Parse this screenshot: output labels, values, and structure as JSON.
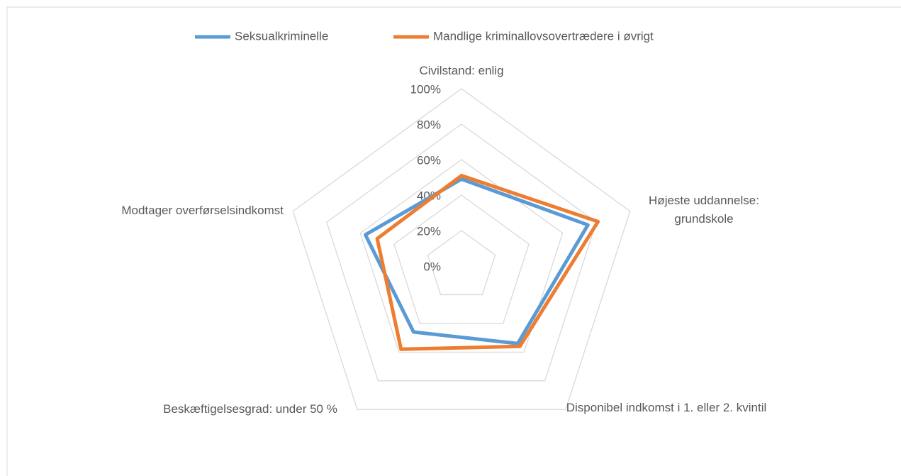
{
  "chart_data": {
    "type": "radar",
    "categories": [
      "Civilstand: enlig",
      "Højeste uddannelse: grundskole",
      "Disponibel indkomst i 1. eller 2. kvintil",
      "Beskæftigelsesgrad: under 50 %",
      "Modtager overførselsindkomst"
    ],
    "series": [
      {
        "name": "Seksualkriminelle",
        "color": "#5b9bd5",
        "values": [
          49,
          75,
          54,
          46,
          57
        ]
      },
      {
        "name": "Mandlige kriminallovsovertrædere i øvrigt",
        "color": "#ed7d31",
        "values": [
          51,
          81,
          56,
          58,
          50
        ]
      }
    ],
    "ylim": [
      0,
      100
    ],
    "yticks": [
      {
        "value": 0,
        "label": "0%"
      },
      {
        "value": 20,
        "label": "20%"
      },
      {
        "value": 40,
        "label": "40%"
      },
      {
        "value": 60,
        "label": "60%"
      },
      {
        "value": 80,
        "label": "80%"
      },
      {
        "value": 100,
        "label": "100%"
      }
    ],
    "grid": true,
    "legend": "top"
  }
}
